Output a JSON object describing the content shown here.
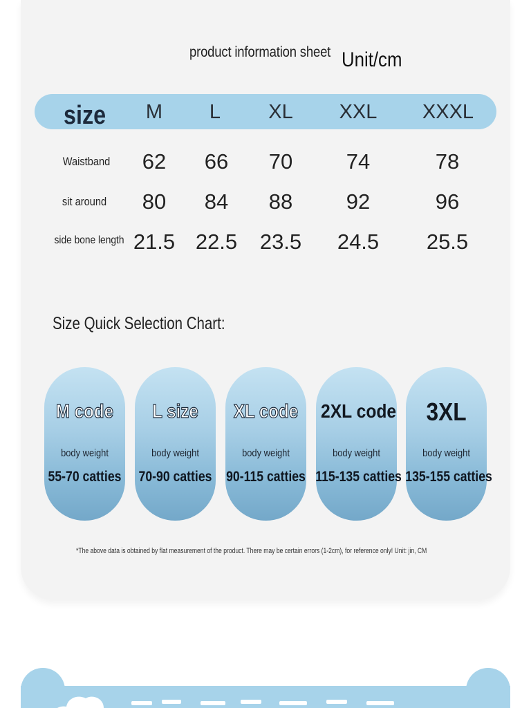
{
  "sheet": {
    "title": "product information sheet",
    "unit": "Unit/cm"
  },
  "table": {
    "size_label": "size",
    "columns": [
      "M",
      "L",
      "XL",
      "XXL",
      "XXXL"
    ],
    "rows": [
      {
        "label": "Waistband",
        "values": [
          "62",
          "66",
          "70",
          "74",
          "78"
        ]
      },
      {
        "label": "sit around",
        "values": [
          "80",
          "84",
          "88",
          "92",
          "96"
        ]
      },
      {
        "label": "side bone length",
        "values": [
          "21.5",
          "22.5",
          "23.5",
          "24.5",
          "25.5"
        ]
      }
    ]
  },
  "quick": {
    "title": "Size Quick Selection Chart:",
    "items": [
      {
        "title": "M code",
        "weight_label": "body weight",
        "range": "55-70 catties"
      },
      {
        "title": "L size",
        "weight_label": "body weight",
        "range": "70-90 catties"
      },
      {
        "title": "XL code",
        "weight_label": "body weight",
        "range": "90-115 catties"
      },
      {
        "title": "2XL code",
        "weight_label": "body weight",
        "range": "115-135 catties"
      },
      {
        "title": "3XL",
        "weight_label": "body weight",
        "range": "135-155 catties"
      }
    ]
  },
  "disclaimer": "*The above data is obtained by flat measurement of the product. There may be certain errors (1-2cm), for reference only! Unit: jin, CM",
  "colors": {
    "accent_blue": "#a7d3ea",
    "card_bg": "#f3f3f3"
  },
  "icons": {
    "banner_icon": "cloud-icon"
  }
}
